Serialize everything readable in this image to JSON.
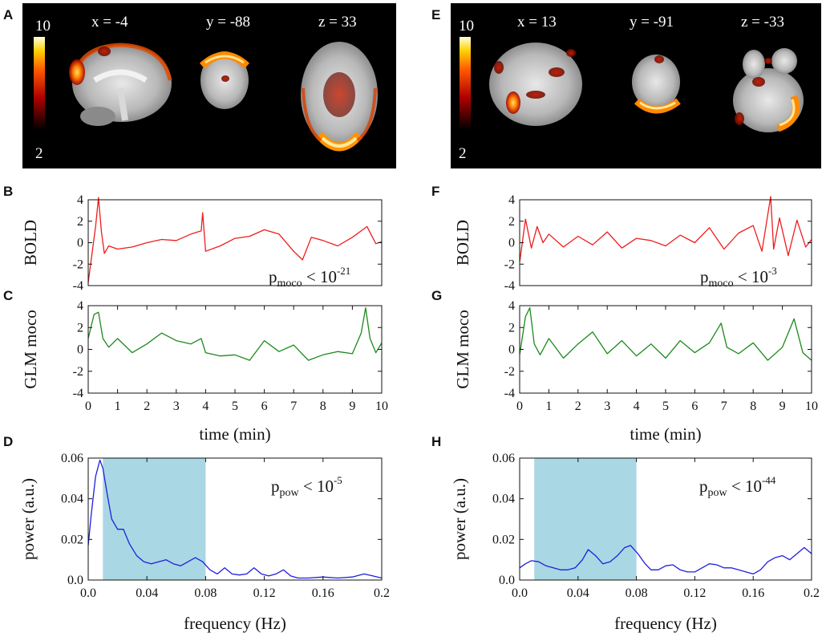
{
  "left": {
    "letters": {
      "brain": "A",
      "bold": "B",
      "glm": "C",
      "power": "D"
    },
    "brain": {
      "colorbar_max": "10",
      "colorbar_min": "2",
      "slices": [
        {
          "label": "x = -4",
          "view": "sagittal"
        },
        {
          "label": "y = -88",
          "view": "coronal"
        },
        {
          "label": "z = 33",
          "view": "axial"
        }
      ]
    },
    "pvalue_timeseries": {
      "prefix": "p",
      "sub": "moco",
      "relation": " < 10",
      "exponent": "-21"
    },
    "pvalue_power": {
      "prefix": "p",
      "sub": "pow",
      "relation": " < 10",
      "exponent": "-5"
    }
  },
  "right": {
    "letters": {
      "brain": "E",
      "bold": "F",
      "glm": "G",
      "power": "H"
    },
    "brain": {
      "colorbar_max": "10",
      "colorbar_min": "2",
      "slices": [
        {
          "label": "x = 13",
          "view": "sagittal"
        },
        {
          "label": "y = -91",
          "view": "coronal"
        },
        {
          "label": "z = -33",
          "view": "axial"
        }
      ]
    },
    "pvalue_timeseries": {
      "prefix": "p",
      "sub": "moco",
      "relation": " < 10",
      "exponent": "-3"
    },
    "pvalue_power": {
      "prefix": "p",
      "sub": "pow",
      "relation": " < 10",
      "exponent": "-44"
    }
  },
  "colors": {
    "bold": "#ee1c1c",
    "glm": "#1a8a1a",
    "power": "#1f1fdd",
    "band": "#a9d7e4",
    "brain_bg": "#000000"
  },
  "chart_data": [
    {
      "id": "B",
      "type": "line",
      "ylabel": "BOLD",
      "xlabel": "",
      "xlim": [
        0,
        10
      ],
      "ylim": [
        -4,
        4
      ],
      "yticks": [
        "-4",
        "-2",
        "0",
        "2",
        "4"
      ],
      "series": [
        {
          "name": "BOLD",
          "x": [
            0,
            0.25,
            0.35,
            0.45,
            0.55,
            0.7,
            1,
            1.5,
            2,
            2.5,
            3,
            3.5,
            3.85,
            3.9,
            4,
            4.5,
            5,
            5.5,
            6,
            6.5,
            7,
            7.3,
            7.6,
            8,
            8.5,
            9,
            9.5,
            9.8,
            10
          ],
          "y": [
            -3.7,
            1.5,
            4.2,
            1.0,
            -1.0,
            -0.3,
            -0.6,
            -0.4,
            0.0,
            0.3,
            0.2,
            0.8,
            1.1,
            2.8,
            -0.8,
            -0.3,
            0.4,
            0.6,
            1.2,
            0.8,
            -0.8,
            -1.6,
            0.5,
            0.2,
            -0.3,
            0.5,
            1.5,
            -0.1,
            0.1
          ]
        }
      ]
    },
    {
      "id": "C",
      "type": "line",
      "ylabel": "GLM moco",
      "xlabel": "time (min)",
      "xlim": [
        0,
        10
      ],
      "ylim": [
        -4,
        4
      ],
      "yticks": [
        "-4",
        "-2",
        "0",
        "2",
        "4"
      ],
      "xticks": [
        "0",
        "1",
        "2",
        "3",
        "4",
        "5",
        "6",
        "7",
        "8",
        "9",
        "10"
      ],
      "series": [
        {
          "name": "GLM moco",
          "x": [
            0,
            0.2,
            0.35,
            0.5,
            0.7,
            1,
            1.5,
            2,
            2.5,
            3,
            3.5,
            3.85,
            4,
            4.5,
            5,
            5.5,
            6,
            6.5,
            7,
            7.5,
            8,
            8.5,
            9,
            9.3,
            9.45,
            9.6,
            9.8,
            10
          ],
          "y": [
            1.0,
            3.2,
            3.4,
            1.0,
            0.2,
            1.0,
            -0.3,
            0.5,
            1.5,
            0.8,
            0.5,
            1.0,
            -0.3,
            -0.6,
            -0.5,
            -1.0,
            0.8,
            -0.2,
            0.4,
            -1.0,
            -0.5,
            -0.2,
            -0.4,
            1.5,
            3.8,
            1.0,
            -0.3,
            0.6
          ]
        }
      ]
    },
    {
      "id": "D",
      "type": "line",
      "ylabel": "power (a.u.)",
      "xlabel": "frequency (Hz)",
      "xlim": [
        0,
        0.2
      ],
      "ylim": [
        0,
        0.06
      ],
      "band": [
        0.01,
        0.08
      ],
      "yticks": [
        "0.0",
        "0.02",
        "0.04",
        "0.06"
      ],
      "xticks": [
        "0.0",
        "0.04",
        "0.08",
        "0.12",
        "0.16",
        "0.2"
      ],
      "series": [
        {
          "name": "power",
          "x": [
            0,
            0.002,
            0.005,
            0.008,
            0.01,
            0.013,
            0.016,
            0.02,
            0.024,
            0.028,
            0.033,
            0.038,
            0.043,
            0.048,
            0.053,
            0.058,
            0.063,
            0.068,
            0.073,
            0.078,
            0.083,
            0.088,
            0.093,
            0.098,
            0.103,
            0.108,
            0.113,
            0.118,
            0.123,
            0.128,
            0.133,
            0.138,
            0.143,
            0.15,
            0.16,
            0.17,
            0.18,
            0.188,
            0.194,
            0.2
          ],
          "y": [
            0.017,
            0.032,
            0.051,
            0.059,
            0.055,
            0.042,
            0.03,
            0.025,
            0.025,
            0.018,
            0.012,
            0.009,
            0.008,
            0.009,
            0.01,
            0.008,
            0.007,
            0.009,
            0.011,
            0.009,
            0.005,
            0.003,
            0.006,
            0.003,
            0.0025,
            0.003,
            0.006,
            0.003,
            0.002,
            0.003,
            0.005,
            0.002,
            0.001,
            0.001,
            0.0015,
            0.001,
            0.0015,
            0.003,
            0.002,
            0.001
          ]
        }
      ]
    },
    {
      "id": "F",
      "type": "line",
      "ylabel": "BOLD",
      "xlabel": "",
      "xlim": [
        0,
        10
      ],
      "ylim": [
        -4,
        4
      ],
      "yticks": [
        "-4",
        "-2",
        "0",
        "2",
        "4"
      ],
      "series": [
        {
          "name": "BOLD",
          "x": [
            0,
            0.2,
            0.4,
            0.6,
            0.8,
            1,
            1.5,
            2,
            2.5,
            3,
            3.5,
            4,
            4.5,
            5,
            5.5,
            6,
            6.5,
            7,
            7.5,
            8,
            8.3,
            8.6,
            8.7,
            8.9,
            9.2,
            9.5,
            9.8,
            10
          ],
          "y": [
            -1.8,
            2.2,
            -0.5,
            1.5,
            0.0,
            0.8,
            -0.4,
            0.6,
            -0.2,
            1.0,
            -0.5,
            0.4,
            0.2,
            -0.3,
            0.7,
            0.0,
            1.4,
            -0.6,
            0.9,
            1.6,
            -0.8,
            4.3,
            -0.6,
            2.3,
            -1.2,
            2.1,
            -0.4,
            0.3
          ]
        }
      ]
    },
    {
      "id": "G",
      "type": "line",
      "ylabel": "GLM moco",
      "xlabel": "time (min)",
      "xlim": [
        0,
        10
      ],
      "ylim": [
        -4,
        4
      ],
      "yticks": [
        "-4",
        "-2",
        "0",
        "2",
        "4"
      ],
      "xticks": [
        "0",
        "1",
        "2",
        "3",
        "4",
        "5",
        "6",
        "7",
        "8",
        "9",
        "10"
      ],
      "series": [
        {
          "name": "GLM moco",
          "x": [
            0,
            0.2,
            0.35,
            0.5,
            0.7,
            1,
            1.5,
            2,
            2.5,
            3,
            3.5,
            4,
            4.5,
            5,
            5.5,
            6,
            6.5,
            6.9,
            7.1,
            7.5,
            8,
            8.5,
            9,
            9.4,
            9.7,
            10
          ],
          "y": [
            -0.5,
            3.0,
            3.8,
            0.5,
            -0.5,
            1.0,
            -0.8,
            0.5,
            1.6,
            -0.4,
            0.8,
            -0.6,
            0.5,
            -0.8,
            0.8,
            -0.3,
            0.6,
            2.4,
            0.2,
            -0.4,
            0.6,
            -1.0,
            0.2,
            2.8,
            -0.3,
            -1.0
          ]
        }
      ]
    },
    {
      "id": "H",
      "type": "line",
      "ylabel": "power (a.u.)",
      "xlabel": "frequency (Hz)",
      "xlim": [
        0,
        0.2
      ],
      "ylim": [
        0,
        0.06
      ],
      "band": [
        0.01,
        0.08
      ],
      "yticks": [
        "0.0",
        "0.02",
        "0.04",
        "0.06"
      ],
      "xticks": [
        "0.0",
        "0.04",
        "0.08",
        "0.12",
        "0.16",
        "0.2"
      ],
      "series": [
        {
          "name": "power",
          "x": [
            0,
            0.004,
            0.008,
            0.013,
            0.018,
            0.023,
            0.028,
            0.033,
            0.038,
            0.043,
            0.047,
            0.052,
            0.057,
            0.062,
            0.067,
            0.072,
            0.076,
            0.081,
            0.086,
            0.09,
            0.095,
            0.1,
            0.105,
            0.11,
            0.115,
            0.12,
            0.125,
            0.13,
            0.135,
            0.14,
            0.145,
            0.15,
            0.155,
            0.16,
            0.165,
            0.17,
            0.175,
            0.18,
            0.185,
            0.19,
            0.195,
            0.2
          ],
          "y": [
            0.006,
            0.008,
            0.0095,
            0.009,
            0.007,
            0.006,
            0.005,
            0.005,
            0.006,
            0.01,
            0.015,
            0.012,
            0.008,
            0.009,
            0.012,
            0.016,
            0.017,
            0.013,
            0.008,
            0.005,
            0.005,
            0.007,
            0.0075,
            0.005,
            0.004,
            0.004,
            0.006,
            0.008,
            0.0075,
            0.006,
            0.006,
            0.005,
            0.004,
            0.003,
            0.005,
            0.009,
            0.011,
            0.012,
            0.01,
            0.013,
            0.016,
            0.013
          ]
        }
      ]
    }
  ]
}
